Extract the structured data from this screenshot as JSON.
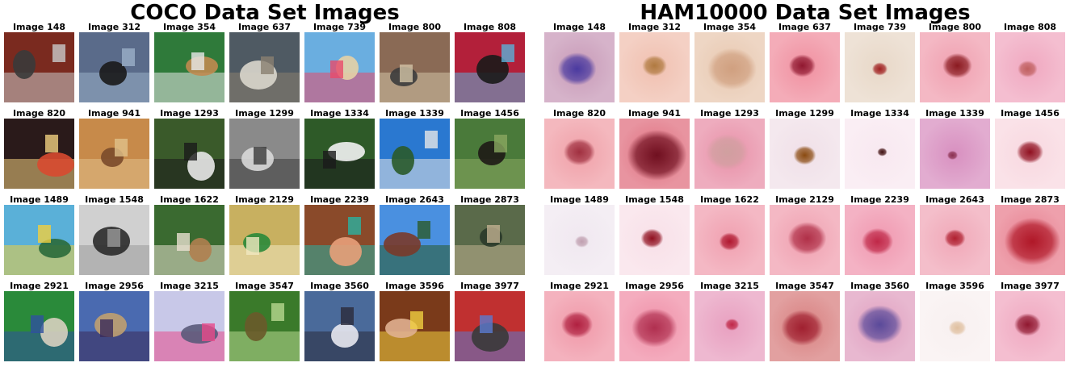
{
  "coco": {
    "title": "COCO Data Set Images",
    "images": [
      {
        "label": "Image 148",
        "bg": "#7a2a1f",
        "fg": "#3a3a3a",
        "accent": "#c9c9c9"
      },
      {
        "label": "Image 312",
        "bg": "#5a6b8a",
        "fg": "#1a1a1a",
        "accent": "#9bb0c8"
      },
      {
        "label": "Image 354",
        "bg": "#2f7a3a",
        "fg": "#c08a50",
        "accent": "#e8e8e8"
      },
      {
        "label": "Image 637",
        "bg": "#4f5a63",
        "fg": "#d9d6cc",
        "accent": "#8a7f70"
      },
      {
        "label": "Image 739",
        "bg": "#6aaee0",
        "fg": "#e6d2a6",
        "accent": "#e84a6a"
      },
      {
        "label": "Image 800",
        "bg": "#8a6a55",
        "fg": "#3c3c3c",
        "accent": "#d2c3a6"
      },
      {
        "label": "Image 808",
        "bg": "#b3203a",
        "fg": "#1a1a1a",
        "accent": "#5bb0d8"
      },
      {
        "label": "Image 820",
        "bg": "#2a1a1a",
        "fg": "#d84a30",
        "accent": "#f0d080"
      },
      {
        "label": "Image 941",
        "bg": "#c78a4a",
        "fg": "#7a4a2a",
        "accent": "#e0c08a"
      },
      {
        "label": "Image 1293",
        "bg": "#3a5a2a",
        "fg": "#e8e8e8",
        "accent": "#1a1a1a"
      },
      {
        "label": "Image 1299",
        "bg": "#8a8a8a",
        "fg": "#d8d8d8",
        "accent": "#3a3a3a"
      },
      {
        "label": "Image 1334",
        "bg": "#2e5a28",
        "fg": "#f2f2f2",
        "accent": "#1a1a1a"
      },
      {
        "label": "Image 1339",
        "bg": "#2a78d0",
        "fg": "#2a5a2a",
        "accent": "#e6e6e6"
      },
      {
        "label": "Image 1456",
        "bg": "#4a7a3a",
        "fg": "#1e1a16",
        "accent": "#8aa860"
      },
      {
        "label": "Image 1489",
        "bg": "#5ab0d8",
        "fg": "#2a6a3a",
        "accent": "#f0d040"
      },
      {
        "label": "Image 1548",
        "bg": "#d0d0d0",
        "fg": "#2a2a2a",
        "accent": "#9a9a9a"
      },
      {
        "label": "Image 1622",
        "bg": "#3a6a30",
        "fg": "#b08050",
        "accent": "#e8e0d0"
      },
      {
        "label": "Image 2129",
        "bg": "#c8b060",
        "fg": "#2a8a3a",
        "accent": "#f0e8c0"
      },
      {
        "label": "Image 2239",
        "bg": "#8a4a2a",
        "fg": "#e8a07a",
        "accent": "#2ab0a0"
      },
      {
        "label": "Image 2643",
        "bg": "#4a90e0",
        "fg": "#7a3a2a",
        "accent": "#2a5a2a"
      },
      {
        "label": "Image 2873",
        "bg": "#5a6a4a",
        "fg": "#2a3a2a",
        "accent": "#c0b090"
      },
      {
        "label": "Image 2921",
        "bg": "#2a8a3a",
        "fg": "#d8d0c0",
        "accent": "#3050a0"
      },
      {
        "label": "Image 2956",
        "bg": "#4a6ab0",
        "fg": "#c0a070",
        "accent": "#3a2a5a"
      },
      {
        "label": "Image 3215",
        "bg": "#c8c8e8",
        "fg": "#5a5a7a",
        "accent": "#e84a8a"
      },
      {
        "label": "Image 3547",
        "bg": "#3a7a2a",
        "fg": "#6a5a2a",
        "accent": "#b8d890"
      },
      {
        "label": "Image 3560",
        "bg": "#4a6a9a",
        "fg": "#e8e8f0",
        "accent": "#2a2a3a"
      },
      {
        "label": "Image 3596",
        "bg": "#7a3a1a",
        "fg": "#e0b090",
        "accent": "#f0d040"
      },
      {
        "label": "Image 3977",
        "bg": "#c03030",
        "fg": "#3a3a3a",
        "accent": "#5a7ad0"
      }
    ]
  },
  "ham": {
    "title": "HAM10000 Data Set Images",
    "images": [
      {
        "label": "Image 148",
        "skin": "#c89ab8",
        "lesion": "#4a3aa0",
        "size": 0.55
      },
      {
        "label": "Image 312",
        "skin": "#f0c0b0",
        "lesion": "#b07a40",
        "size": 0.35
      },
      {
        "label": "Image 354",
        "skin": "#e8c8b0",
        "lesion": "#d0a080",
        "size": 0.7
      },
      {
        "label": "Image 637",
        "skin": "#f090a0",
        "lesion": "#901830",
        "size": 0.38
      },
      {
        "label": "Image 739",
        "skin": "#e8d8c8",
        "lesion": "#a02020",
        "size": 0.22
      },
      {
        "label": "Image 800",
        "skin": "#f0a0b0",
        "lesion": "#8a1a20",
        "size": 0.42
      },
      {
        "label": "Image 808",
        "skin": "#f0a8c0",
        "lesion": "#c06060",
        "size": 0.28
      },
      {
        "label": "Image 820",
        "skin": "#f0a0a8",
        "lesion": "#a03040",
        "size": 0.45
      },
      {
        "label": "Image 941",
        "skin": "#e07080",
        "lesion": "#701020",
        "size": 0.85
      },
      {
        "label": "Image 1293",
        "skin": "#e890a8",
        "lesion": "#d0a0a0",
        "size": 0.6
      },
      {
        "label": "Image 1299",
        "skin": "#f0e0e8",
        "lesion": "#8a4a10",
        "size": 0.32
      },
      {
        "label": "Image 1334",
        "skin": "#f8e8f0",
        "lesion": "#401010",
        "size": 0.14
      },
      {
        "label": "Image 1339",
        "skin": "#d890c0",
        "lesion": "#8a3050",
        "size": 0.15
      },
      {
        "label": "Image 1456",
        "skin": "#f8d8e0",
        "lesion": "#901020",
        "size": 0.38
      },
      {
        "label": "Image 1489",
        "skin": "#f0e8f0",
        "lesion": "#c0a0b0",
        "size": 0.2
      },
      {
        "label": "Image 1548",
        "skin": "#f8e0e8",
        "lesion": "#901020",
        "size": 0.32
      },
      {
        "label": "Image 1622",
        "skin": "#f0a0b0",
        "lesion": "#b01830",
        "size": 0.3
      },
      {
        "label": "Image 2129",
        "skin": "#f0a0b0",
        "lesion": "#b03048",
        "size": 0.55
      },
      {
        "label": "Image 2239",
        "skin": "#f098b0",
        "lesion": "#c02848",
        "size": 0.45
      },
      {
        "label": "Image 2643",
        "skin": "#f0a8b8",
        "lesion": "#b02030",
        "size": 0.3
      },
      {
        "label": "Image 2873",
        "skin": "#e88090",
        "lesion": "#b01828",
        "size": 0.8
      },
      {
        "label": "Image 2921",
        "skin": "#f098a8",
        "lesion": "#b02040",
        "size": 0.45
      },
      {
        "label": "Image 2956",
        "skin": "#f090a8",
        "lesion": "#b03050",
        "size": 0.65
      },
      {
        "label": "Image 3215",
        "skin": "#e8a0c0",
        "lesion": "#c02848",
        "size": 0.2
      },
      {
        "label": "Image 3547",
        "skin": "#d88080",
        "lesion": "#a02030",
        "size": 0.6
      },
      {
        "label": "Image 3560",
        "skin": "#e0a0c0",
        "lesion": "#5a4a9a",
        "size": 0.65
      },
      {
        "label": "Image 3596",
        "skin": "#f8f0f0",
        "lesion": "#e0c0a0",
        "size": 0.25
      },
      {
        "label": "Image 3977",
        "skin": "#f0a8c0",
        "lesion": "#901830",
        "size": 0.38
      }
    ]
  }
}
